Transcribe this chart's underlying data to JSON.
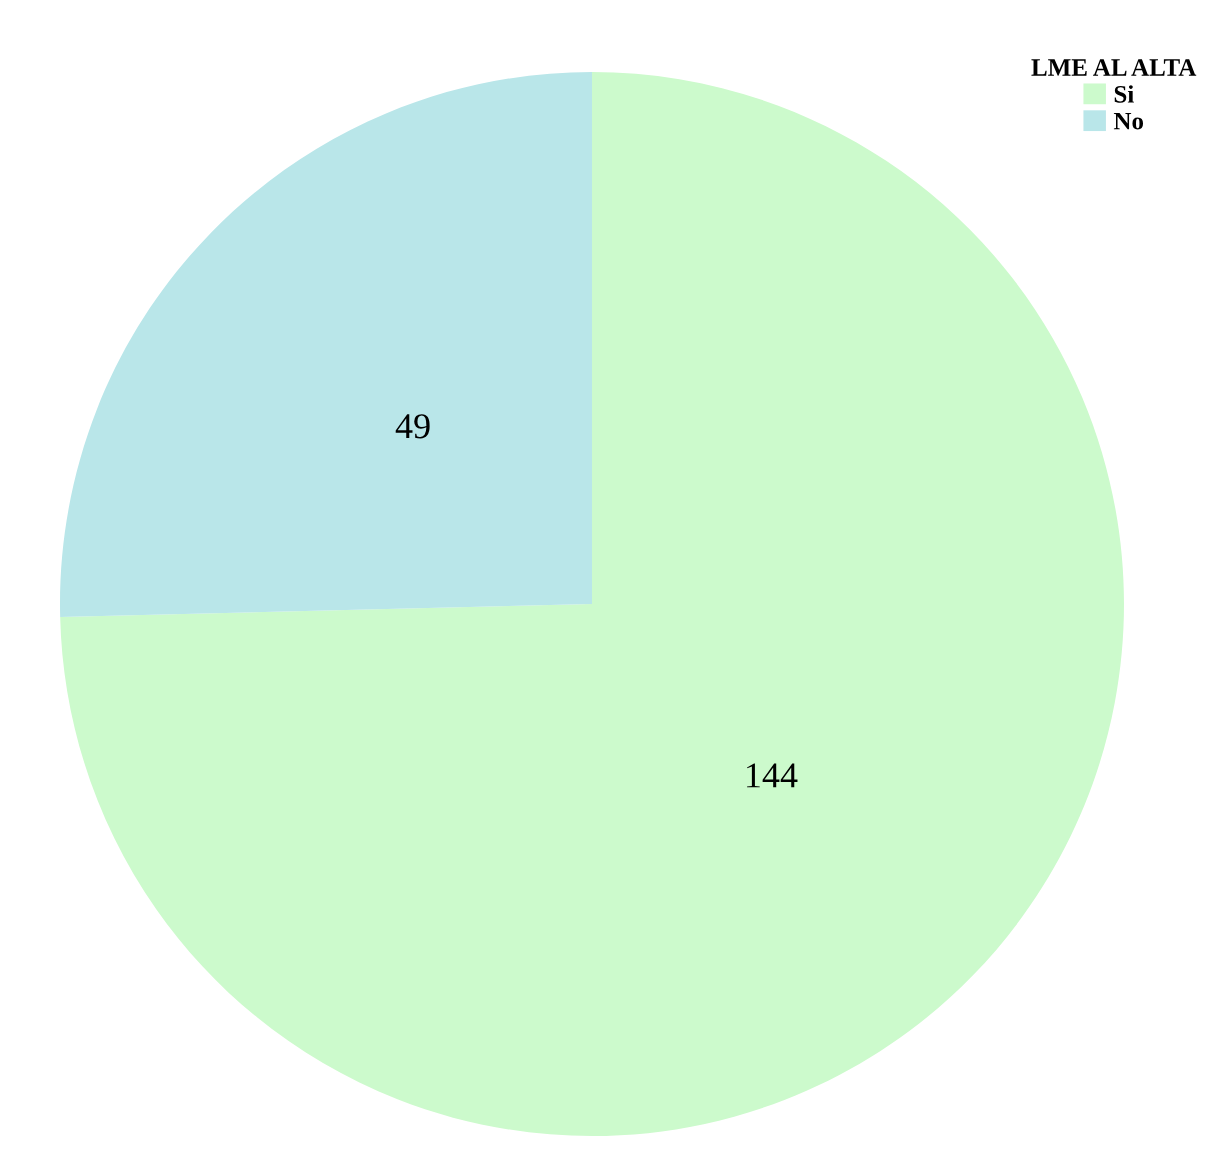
{
  "chart_data": {
    "type": "pie",
    "legend_title": "LME AL ALTA",
    "categories": [
      "Si",
      "No"
    ],
    "values": [
      144,
      49
    ],
    "colors": [
      "#ccfacc",
      "#b9e6e9"
    ],
    "data_labels": true,
    "legend": "top right"
  }
}
